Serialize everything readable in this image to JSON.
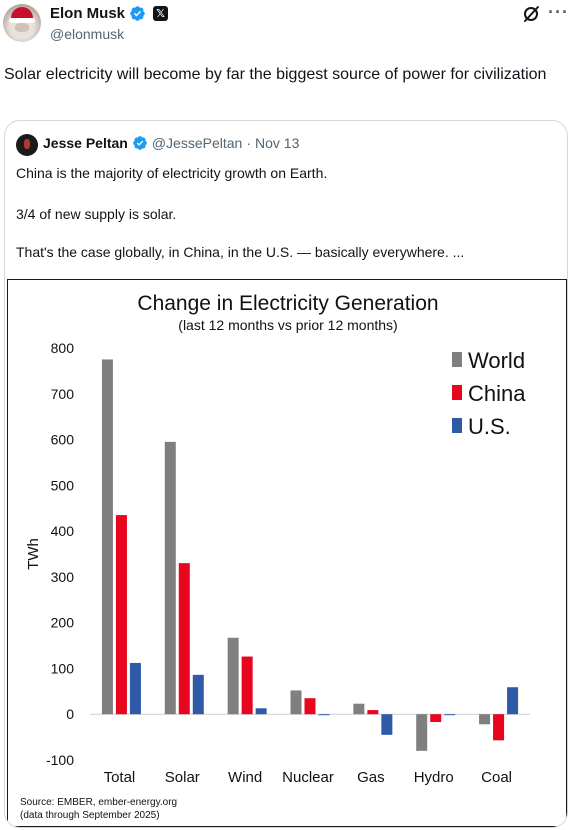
{
  "author": {
    "name": "Elon Musk",
    "handle": "@elonmusk",
    "verified_icon": "verified-badge-icon",
    "affiliation_icon": "x-logo-icon",
    "affiliation_glyph": "𝕏"
  },
  "actions": {
    "grok_icon": "grok-icon",
    "more_glyph": "···"
  },
  "tweet": {
    "text": "Solar electricity will become by far the biggest source of power for civilization"
  },
  "quote": {
    "author_name": "Jesse Peltan",
    "author_handle": "@JessePeltan",
    "separator": "·",
    "date": "Nov 13",
    "lines": [
      "China is the majority of electricity growth on Earth.",
      "3/4 of new supply is solar.",
      "That's the case globally, in China, in the U.S. — basically everywhere.  ..."
    ]
  },
  "chart_data": {
    "type": "bar",
    "title": "Change in Electricity Generation",
    "subtitle": "(last 12 months vs prior 12 months)",
    "ylabel": "TWh",
    "xlabel": "",
    "ylim": [
      -100,
      800
    ],
    "yticks": [
      -100,
      0,
      100,
      200,
      300,
      400,
      500,
      600,
      700,
      800
    ],
    "categories": [
      "Total",
      "Solar",
      "Wind",
      "Nuclear",
      "Gas",
      "Hydro",
      "Coal"
    ],
    "series": [
      {
        "name": "World",
        "color": "#7f7f7f",
        "values": [
          775,
          595,
          167,
          52,
          23,
          -80,
          -22
        ]
      },
      {
        "name": "China",
        "color": "#e8061f",
        "values": [
          435,
          330,
          126,
          35,
          9,
          -17,
          -57
        ]
      },
      {
        "name": "U.S.",
        "color": "#2e5aa8",
        "values": [
          112,
          86,
          13,
          -2,
          -45,
          0,
          59
        ]
      }
    ],
    "legend_position": "top-right",
    "grid": false,
    "source": "Source: EMBER, ember-energy.org",
    "source_note": "(data through September 2025)"
  }
}
